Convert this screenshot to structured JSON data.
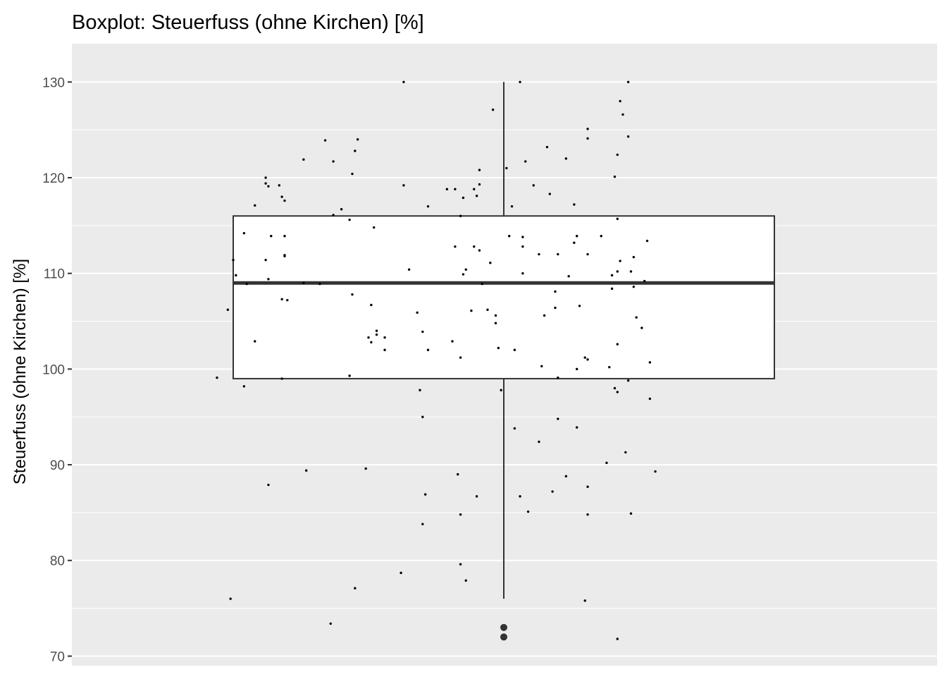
{
  "chart_data": {
    "type": "boxplot",
    "title": "Boxplot: Steuerfuss (ohne Kirchen) [%]",
    "xlabel": "",
    "ylabel": "Steuerfuss (ohne Kirchen) [%]",
    "ylim": [
      69,
      134
    ],
    "yticks": [
      70,
      80,
      90,
      100,
      110,
      120,
      130
    ],
    "ytick_labels": [
      "70",
      "80",
      "90",
      "100",
      "110",
      "120",
      "130"
    ],
    "grid": true,
    "colors": {
      "panel_background": "#ebebeb",
      "grid": "#ffffff",
      "box_fill": "#ffffff",
      "box_stroke": "#333333",
      "points": "#000000",
      "outliers": "#333333"
    },
    "box": {
      "q1": 99,
      "median": 109,
      "q3": 116,
      "whisker_low": 76,
      "whisker_high": 130,
      "outliers": [
        73,
        72
      ]
    },
    "jitter_points": [
      [
        -0.37,
        130
      ],
      [
        0.46,
        130
      ],
      [
        0.06,
        130
      ],
      [
        0.43,
        128
      ],
      [
        0.44,
        126.6
      ],
      [
        0.46,
        124.3
      ],
      [
        0.31,
        125.1
      ],
      [
        0.31,
        124.1
      ],
      [
        -0.04,
        127.1
      ],
      [
        -0.66,
        123.9
      ],
      [
        -0.54,
        124.0
      ],
      [
        -0.74,
        121.9
      ],
      [
        -0.63,
        121.7
      ],
      [
        0.42,
        122.4
      ],
      [
        0.23,
        122.0
      ],
      [
        0.16,
        123.2
      ],
      [
        -0.55,
        122.8
      ],
      [
        0.08,
        121.7
      ],
      [
        -0.56,
        120.4
      ],
      [
        -0.09,
        120.8
      ],
      [
        0.41,
        120.1
      ],
      [
        -0.88,
        120.0
      ],
      [
        -0.88,
        119.4
      ],
      [
        -0.83,
        119.2
      ],
      [
        -0.82,
        118.0
      ],
      [
        -0.87,
        119.1
      ],
      [
        -0.81,
        117.6
      ],
      [
        -0.92,
        117.1
      ],
      [
        -0.37,
        119.2
      ],
      [
        -0.21,
        118.8
      ],
      [
        -0.18,
        118.8
      ],
      [
        -0.09,
        119.3
      ],
      [
        -0.15,
        117.9
      ],
      [
        -0.1,
        118.1
      ],
      [
        -0.11,
        118.8
      ],
      [
        -0.6,
        116.7
      ],
      [
        -0.63,
        116.1
      ],
      [
        0.01,
        121.0
      ],
      [
        0.11,
        119.2
      ],
      [
        0.26,
        117.2
      ],
      [
        0.03,
        117.0
      ],
      [
        0.17,
        118.3
      ],
      [
        -0.28,
        117.0
      ],
      [
        -0.16,
        116.0
      ],
      [
        -0.57,
        115.6
      ],
      [
        0.42,
        115.7
      ],
      [
        -0.48,
        114.8
      ],
      [
        -0.96,
        114.2
      ],
      [
        0.27,
        113.9
      ],
      [
        0.26,
        113.2
      ],
      [
        0.36,
        113.9
      ],
      [
        -0.86,
        113.9
      ],
      [
        -0.81,
        113.9
      ],
      [
        0.02,
        113.9
      ],
      [
        0.07,
        113.8
      ],
      [
        0.07,
        112.8
      ],
      [
        -0.18,
        112.8
      ],
      [
        -0.11,
        112.8
      ],
      [
        -0.09,
        112.4
      ],
      [
        0.53,
        113.4
      ],
      [
        0.31,
        112.0
      ],
      [
        0.2,
        112.0
      ],
      [
        0.13,
        112.0
      ],
      [
        -0.81,
        111.9
      ],
      [
        -0.81,
        111.8
      ],
      [
        0.48,
        111.7
      ],
      [
        -1.0,
        111.4
      ],
      [
        -0.88,
        111.4
      ],
      [
        0.43,
        111.3
      ],
      [
        -0.05,
        111.1
      ],
      [
        -0.35,
        110.4
      ],
      [
        -0.14,
        110.4
      ],
      [
        -0.15,
        109.9
      ],
      [
        0.07,
        110.0
      ],
      [
        0.47,
        110.2
      ],
      [
        -0.99,
        109.8
      ],
      [
        0.24,
        109.7
      ],
      [
        0.4,
        109.8
      ],
      [
        0.42,
        110.2
      ],
      [
        -0.87,
        109.4
      ],
      [
        -0.95,
        108.9
      ],
      [
        -0.74,
        109.0
      ],
      [
        -0.68,
        108.9
      ],
      [
        -0.08,
        108.9
      ],
      [
        0.48,
        108.6
      ],
      [
        0.52,
        109.2
      ],
      [
        0.4,
        108.4
      ],
      [
        0.19,
        108.1
      ],
      [
        -0.56,
        107.8
      ],
      [
        -0.82,
        107.3
      ],
      [
        -0.8,
        107.2
      ],
      [
        0.28,
        106.6
      ],
      [
        -0.49,
        106.7
      ],
      [
        -0.06,
        106.2
      ],
      [
        0.19,
        106.4
      ],
      [
        -0.12,
        106.1
      ],
      [
        -1.02,
        106.2
      ],
      [
        -0.32,
        105.9
      ],
      [
        -0.03,
        105.6
      ],
      [
        0.15,
        105.6
      ],
      [
        0.49,
        105.4
      ],
      [
        -0.03,
        104.8
      ],
      [
        0.51,
        104.3
      ],
      [
        -0.47,
        104.0
      ],
      [
        -0.47,
        103.6
      ],
      [
        -0.44,
        103.3
      ],
      [
        -0.5,
        103.3
      ],
      [
        -0.49,
        102.8
      ],
      [
        -0.92,
        102.9
      ],
      [
        -0.19,
        102.9
      ],
      [
        0.42,
        102.6
      ],
      [
        -0.3,
        103.9
      ],
      [
        -0.44,
        102.0
      ],
      [
        -0.28,
        102.0
      ],
      [
        0.04,
        102.0
      ],
      [
        -0.02,
        102.2
      ],
      [
        -0.16,
        101.2
      ],
      [
        0.3,
        101.2
      ],
      [
        0.31,
        101.0
      ],
      [
        0.54,
        100.7
      ],
      [
        0.14,
        100.3
      ],
      [
        0.27,
        100.0
      ],
      [
        0.39,
        100.2
      ],
      [
        -1.06,
        99.1
      ],
      [
        -0.57,
        99.3
      ],
      [
        -0.82,
        99.0
      ],
      [
        0.2,
        99.1
      ],
      [
        0.46,
        98.8
      ],
      [
        -0.96,
        98.2
      ],
      [
        0.41,
        98.0
      ],
      [
        0.42,
        97.6
      ],
      [
        -0.31,
        97.8
      ],
      [
        -0.01,
        97.8
      ],
      [
        0.54,
        96.9
      ],
      [
        -0.3,
        95.0
      ],
      [
        0.2,
        94.8
      ],
      [
        0.04,
        93.8
      ],
      [
        0.27,
        93.9
      ],
      [
        0.13,
        92.4
      ],
      [
        0.45,
        91.3
      ],
      [
        0.38,
        90.2
      ],
      [
        -0.73,
        89.4
      ],
      [
        -0.51,
        89.6
      ],
      [
        -0.17,
        89.0
      ],
      [
        0.56,
        89.3
      ],
      [
        0.23,
        88.8
      ],
      [
        -0.87,
        87.9
      ],
      [
        -0.29,
        86.9
      ],
      [
        -0.1,
        86.7
      ],
      [
        0.06,
        86.7
      ],
      [
        0.18,
        87.2
      ],
      [
        0.31,
        87.7
      ],
      [
        0.31,
        84.8
      ],
      [
        -0.16,
        84.8
      ],
      [
        0.09,
        85.1
      ],
      [
        0.47,
        84.9
      ],
      [
        -0.3,
        83.8
      ],
      [
        -0.16,
        79.6
      ],
      [
        -0.38,
        78.7
      ],
      [
        -0.14,
        77.9
      ],
      [
        -0.55,
        77.1
      ],
      [
        -1.01,
        76.0
      ],
      [
        0.3,
        75.8
      ],
      [
        -0.64,
        73.4
      ],
      [
        0.42,
        71.8
      ]
    ]
  }
}
